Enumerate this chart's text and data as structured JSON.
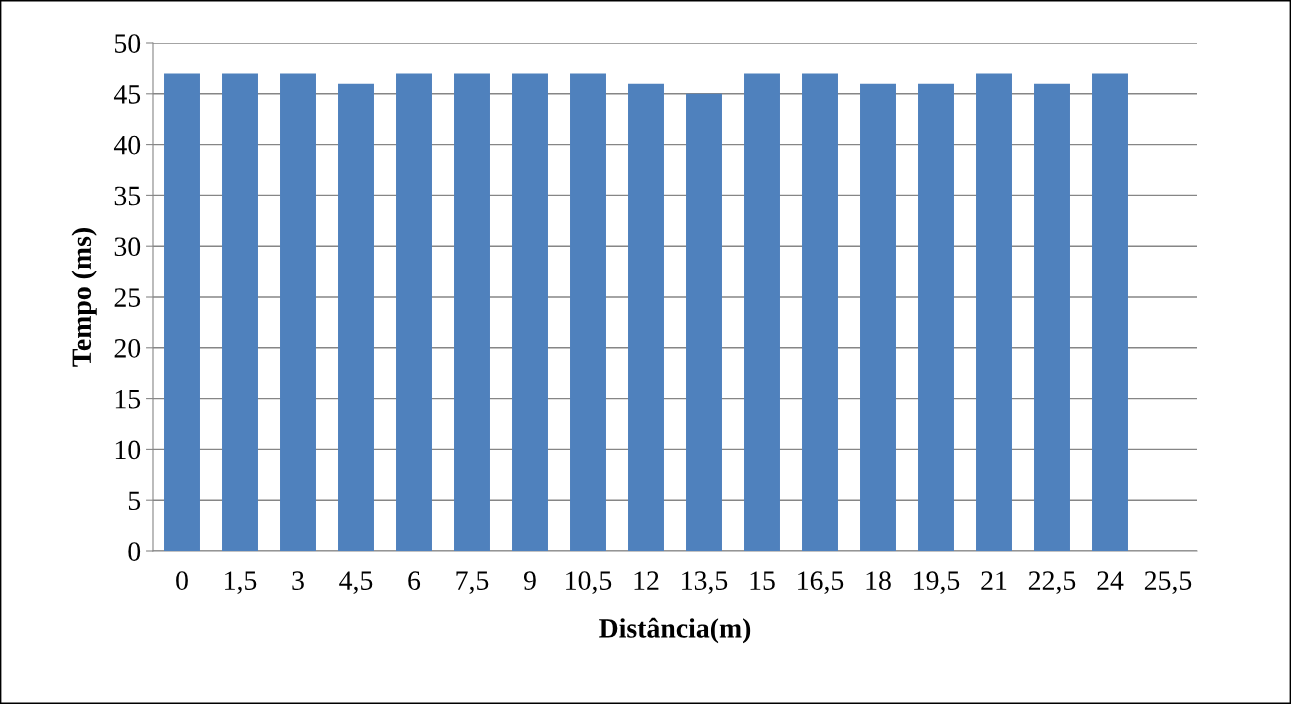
{
  "chart_data": {
    "type": "bar",
    "xlabel": "Distância(m)",
    "ylabel": "Tempo (ms)",
    "categories": [
      "0",
      "1,5",
      "3",
      "4,5",
      "6",
      "7,5",
      "9",
      "10,5",
      "12",
      "13,5",
      "15",
      "16,5",
      "18",
      "19,5",
      "21",
      "22,5",
      "24",
      "25,5"
    ],
    "values": [
      47,
      47,
      47,
      46,
      47,
      47,
      47,
      47,
      46,
      45,
      47,
      47,
      46,
      46,
      47,
      46,
      47,
      null
    ],
    "color": "#4f81bd",
    "ylim": [
      0,
      50
    ],
    "yticks": [
      0,
      5,
      10,
      15,
      20,
      25,
      30,
      35,
      40,
      45,
      50
    ],
    "grid": "y"
  }
}
